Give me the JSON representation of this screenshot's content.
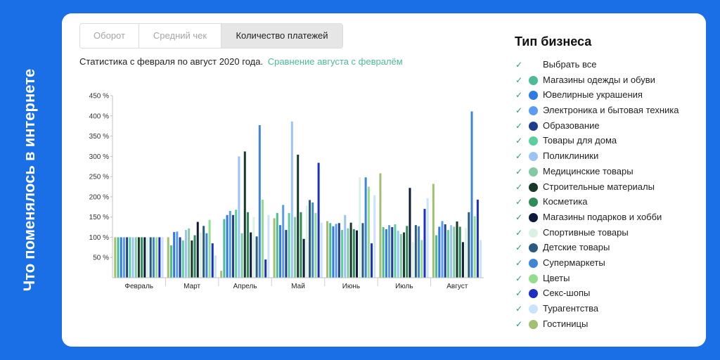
{
  "side_title": "Что поменялось в интернете",
  "tabs": [
    {
      "label": "Оборот",
      "active": false
    },
    {
      "label": "Средний чек",
      "active": false
    },
    {
      "label": "Количество платежей",
      "active": true
    }
  ],
  "subtitle": {
    "text": "Статистика с февраля по август 2020 года.",
    "link": "Сравнение августа с февралём"
  },
  "legend": {
    "title": "Тип бизнеса",
    "select_all": "Выбрать все",
    "check_icon": "checkmark-icon",
    "items": [
      {
        "label": "Магазины одежды и обуви",
        "color": "#4cbb96"
      },
      {
        "label": "Ювелирные украшения",
        "color": "#2f7be6"
      },
      {
        "label": "Электроника и бытовая техника",
        "color": "#5b9cf2"
      },
      {
        "label": "Образование",
        "color": "#1f3f8c"
      },
      {
        "label": "Товары для дома",
        "color": "#5ccf9f"
      },
      {
        "label": "Поликлиники",
        "color": "#9bc4f4"
      },
      {
        "label": "Медицинские товары",
        "color": "#82c9a5"
      },
      {
        "label": "Строительные материалы",
        "color": "#17392a"
      },
      {
        "label": "Косметика",
        "color": "#2e8c5a"
      },
      {
        "label": "Магазины подарков и хобби",
        "color": "#0d1a3a"
      },
      {
        "label": "Спортивные товары",
        "color": "#d9f2e3"
      },
      {
        "label": "Детские товары",
        "color": "#2a5a82"
      },
      {
        "label": "Супермаркеты",
        "color": "#3f86d4"
      },
      {
        "label": "Цветы",
        "color": "#93dd8f"
      },
      {
        "label": "Секс-шопы",
        "color": "#1f2fc4"
      },
      {
        "label": "Турагентства",
        "color": "#c8e3fb"
      },
      {
        "label": "Гостиницы",
        "color": "#a3bf72"
      }
    ]
  },
  "chart_data": {
    "type": "bar",
    "categories": [
      "Февраль",
      "Март",
      "Апрель",
      "Май",
      "Июнь",
      "Июль",
      "Август"
    ],
    "ylim": [
      0,
      450
    ],
    "y_ticks": [
      "50 %",
      "100 %",
      "150 %",
      "200 %",
      "250 %",
      "300 %",
      "350 %",
      "400 %",
      "450 %"
    ],
    "y_tick_values": [
      50,
      100,
      150,
      200,
      250,
      300,
      350,
      400,
      450
    ],
    "gridlines": false,
    "series": [
      {
        "name": "Гостиницы",
        "color": "#a3bf72",
        "values": [
          100,
          100,
          17,
          147,
          140,
          258,
          232
        ]
      },
      {
        "name": "Магазины одежды и обуви",
        "color": "#4cbb96",
        "values": [
          100,
          80,
          145,
          160,
          135,
          125,
          105
        ]
      },
      {
        "name": "Ювелирные украшения",
        "color": "#2f7be6",
        "values": [
          100,
          113,
          155,
          130,
          127,
          120,
          126
        ]
      },
      {
        "name": "Электроника и бытовая техника",
        "color": "#5b9cf2",
        "values": [
          100,
          114,
          165,
          180,
          133,
          130,
          140
        ]
      },
      {
        "name": "Образование",
        "color": "#1f3f8c",
        "values": [
          100,
          100,
          155,
          118,
          135,
          125,
          132
        ]
      },
      {
        "name": "Товары для дома",
        "color": "#5ccf9f",
        "values": [
          100,
          92,
          168,
          160,
          118,
          132,
          118
        ]
      },
      {
        "name": "Поликлиники",
        "color": "#9bc4f4",
        "values": [
          100,
          118,
          300,
          386,
          155,
          116,
          130
        ]
      },
      {
        "name": "Медицинские товары",
        "color": "#82c9a5",
        "values": [
          100,
          122,
          110,
          150,
          122,
          108,
          126
        ]
      },
      {
        "name": "Строительные материалы",
        "color": "#17392a",
        "values": [
          100,
          92,
          312,
          304,
          136,
          112,
          139
        ]
      },
      {
        "name": "Косметика",
        "color": "#2e8c5a",
        "values": [
          100,
          105,
          162,
          162,
          120,
          128,
          126
        ]
      },
      {
        "name": "Магазины подарков и хобби",
        "color": "#0d1a3a",
        "values": [
          100,
          138,
          112,
          96,
          117,
          222,
          88
        ]
      },
      {
        "name": "Спортивные товары",
        "color": "#d9f2e3",
        "values": [
          100,
          112,
          150,
          178,
          248,
          88,
          123
        ]
      },
      {
        "name": "Детские товары",
        "color": "#2a5a82",
        "values": [
          100,
          128,
          102,
          192,
          135,
          130,
          162
        ]
      },
      {
        "name": "Супермаркеты",
        "color": "#3f86d4",
        "values": [
          100,
          110,
          377,
          186,
          248,
          127,
          411
        ]
      },
      {
        "name": "Цветы",
        "color": "#93dd8f",
        "values": [
          100,
          143,
          193,
          160,
          225,
          93,
          152
        ]
      },
      {
        "name": "Секс-шопы",
        "color": "#1f2fc4",
        "values": [
          100,
          85,
          45,
          284,
          85,
          170,
          193
        ]
      },
      {
        "name": "Турагентства",
        "color": "#c8e3fb",
        "values": [
          100,
          55,
          155,
          136,
          204,
          196,
          93
        ]
      }
    ]
  }
}
